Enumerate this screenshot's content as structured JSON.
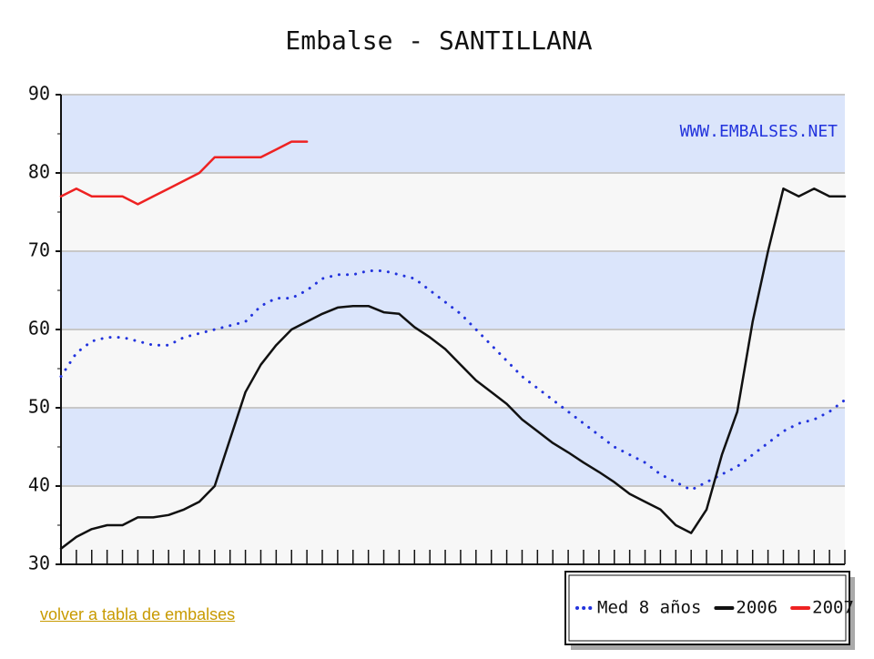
{
  "chart_data": {
    "type": "line",
    "title": "Embalse - SANTILLANA",
    "watermark": "WWW.EMBALSES.NET",
    "link": "volver a tabla de embalses",
    "categories": [
      null,
      null,
      null,
      null,
      null,
      null,
      null,
      null,
      null,
      null,
      null,
      null,
      null,
      null,
      null,
      null,
      null,
      null,
      null,
      null,
      null,
      null,
      null,
      null,
      null,
      null,
      null,
      null,
      null,
      null,
      null,
      null,
      null,
      null,
      null,
      null,
      null,
      null,
      null,
      null,
      null,
      null,
      null,
      null,
      null,
      null,
      null,
      null,
      null,
      null,
      null,
      null
    ],
    "series": [
      {
        "name": "Med 8 años",
        "color": "#2233dd",
        "style": "dotted",
        "values": [
          54,
          57,
          58.5,
          59,
          59,
          58.5,
          58,
          58,
          59,
          59.5,
          60,
          60.5,
          61,
          63,
          64,
          64,
          65,
          66.5,
          67,
          67,
          67.5,
          67.5,
          67,
          66.5,
          65,
          63.5,
          62,
          60,
          58,
          56,
          54,
          52.5,
          51,
          49.5,
          48,
          46.5,
          45,
          44,
          43,
          41.5,
          40.5,
          39.5,
          40.5,
          41.5,
          42.5,
          44,
          45.5,
          47,
          48,
          48.5,
          49.5,
          51
        ]
      },
      {
        "name": "2006",
        "color": "#111111",
        "style": "solid",
        "values": [
          32,
          33.5,
          34.5,
          35,
          35,
          36,
          36,
          36.3,
          37,
          38,
          40,
          46,
          52,
          55.5,
          58,
          60,
          61,
          62,
          62.8,
          63,
          63,
          62.2,
          62,
          60.3,
          59,
          57.5,
          55.5,
          53.5,
          52,
          50.5,
          48.5,
          47,
          45.5,
          44.3,
          43,
          41.8,
          40.5,
          39,
          38,
          37,
          35,
          34,
          37,
          44,
          49.5,
          61,
          70,
          78,
          77,
          78,
          77,
          77
        ]
      },
      {
        "name": "2007",
        "color": "#ee2222",
        "style": "solid",
        "values": [
          77,
          78,
          77,
          77,
          77,
          76,
          77,
          78,
          79,
          80,
          82,
          82,
          82,
          82,
          83,
          84,
          84,
          null,
          null,
          null,
          null,
          null,
          null,
          null,
          null,
          null,
          null,
          null,
          null,
          null,
          null,
          null,
          null,
          null,
          null,
          null,
          null,
          null,
          null,
          null,
          null,
          null,
          null,
          null,
          null,
          null,
          null,
          null,
          null,
          null,
          null,
          null
        ]
      }
    ],
    "ylim": [
      30,
      90
    ],
    "yticks": [
      30,
      40,
      50,
      60,
      70,
      80,
      90
    ],
    "grid": true,
    "band_colors": [
      "#f7f7f7",
      "#dbe5fb"
    ],
    "legend": "bottom-right"
  }
}
